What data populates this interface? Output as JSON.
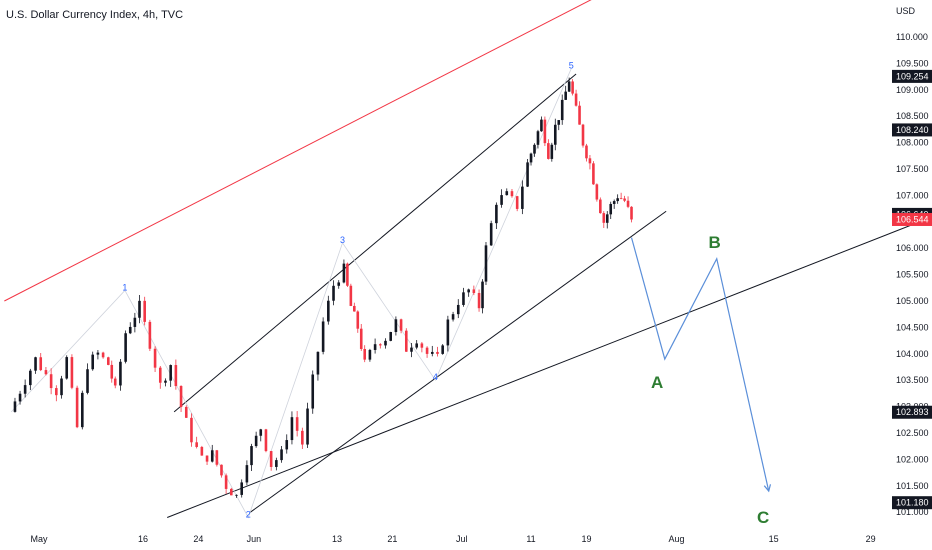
{
  "header": {
    "title": "U.S. Dollar Currency Index, 4h, TVC"
  },
  "chart_data": {
    "type": "candlestick",
    "currency": "USD",
    "y_ticks": [
      "110.000",
      "109.500",
      "109.000",
      "108.500",
      "108.000",
      "107.500",
      "107.000",
      "106.500",
      "106.000",
      "105.500",
      "105.000",
      "104.500",
      "104.000",
      "103.500",
      "103.000",
      "102.500",
      "102.000",
      "101.500",
      "101.000"
    ],
    "x_ticks": [
      {
        "label": "May",
        "day": 1
      },
      {
        "label": "16",
        "day": 16
      },
      {
        "label": "24",
        "day": 24
      },
      {
        "label": "Jun",
        "day": 32
      },
      {
        "label": "13",
        "day": 44
      },
      {
        "label": "21",
        "day": 52
      },
      {
        "label": "Jul",
        "day": 62
      },
      {
        "label": "11",
        "day": 72
      },
      {
        "label": "19",
        "day": 80
      },
      {
        "label": "Aug",
        "day": 93
      },
      {
        "label": "15",
        "day": 107
      },
      {
        "label": "29",
        "day": 121
      }
    ],
    "price_tags": [
      {
        "value": 109.254,
        "label": "109.254"
      },
      {
        "value": 108.24,
        "label": "108.240"
      },
      {
        "value": 106.64,
        "label": "106.640"
      },
      {
        "value": 106.544,
        "label": "106.544",
        "highlight": true
      },
      {
        "value": 102.893,
        "label": "102.893"
      },
      {
        "value": 101.18,
        "label": "101.180"
      }
    ],
    "price_path": [
      [
        -3.2,
        102.9
      ],
      [
        -1,
        103.5
      ],
      [
        0.5,
        103.9
      ],
      [
        2,
        103.6
      ],
      [
        3.5,
        103.3
      ],
      [
        5,
        103.9
      ],
      [
        6.5,
        102.6
      ],
      [
        8,
        103.8
      ],
      [
        9.5,
        104.0
      ],
      [
        11,
        103.8
      ],
      [
        12,
        103.3
      ],
      [
        13.5,
        104.4
      ],
      [
        15.5,
        104.9
      ],
      [
        17,
        104.2
      ],
      [
        18.5,
        103.4
      ],
      [
        20,
        103.8
      ],
      [
        21.5,
        103.0
      ],
      [
        23,
        102.4
      ],
      [
        24.5,
        102.0
      ],
      [
        26,
        102.1
      ],
      [
        28,
        101.5
      ],
      [
        29.5,
        101.3
      ],
      [
        31,
        102.0
      ],
      [
        33,
        102.6
      ],
      [
        34.5,
        101.9
      ],
      [
        36,
        102.1
      ],
      [
        37.5,
        102.8
      ],
      [
        39,
        102.3
      ],
      [
        40.5,
        103.5
      ],
      [
        42,
        104.6
      ],
      [
        43.5,
        105.3
      ],
      [
        45,
        105.6
      ],
      [
        46,
        104.9
      ],
      [
        47,
        104.5
      ],
      [
        48,
        103.8
      ],
      [
        49.5,
        104.2
      ],
      [
        51,
        104.3
      ],
      [
        52.5,
        104.6
      ],
      [
        54,
        104.1
      ],
      [
        55.5,
        104.3
      ],
      [
        57,
        104.0
      ],
      [
        58.5,
        103.9
      ],
      [
        60,
        104.6
      ],
      [
        61.5,
        105.0
      ],
      [
        63,
        105.2
      ],
      [
        64.5,
        104.9
      ],
      [
        65.5,
        106.0
      ],
      [
        67,
        106.9
      ],
      [
        68.5,
        107.0
      ],
      [
        70,
        106.8
      ],
      [
        71.5,
        107.6
      ],
      [
        72.5,
        108.0
      ],
      [
        73.5,
        108.4
      ],
      [
        74.5,
        107.8
      ],
      [
        75.5,
        108.3
      ],
      [
        76.5,
        108.7
      ],
      [
        77.5,
        109.2
      ],
      [
        78.5,
        108.6
      ],
      [
        79.5,
        108.0
      ],
      [
        80.5,
        107.6
      ],
      [
        81.5,
        107.0
      ],
      [
        82.5,
        106.5
      ],
      [
        83.5,
        106.8
      ],
      [
        84.5,
        107.0
      ],
      [
        85.5,
        106.9
      ],
      [
        86.5,
        106.544
      ]
    ],
    "wave_labels": [
      {
        "label": "1",
        "day": 13.4,
        "value": 105.2
      },
      {
        "label": "2",
        "day": 31.2,
        "value": 100.9
      },
      {
        "label": "3",
        "day": 44.8,
        "value": 106.1
      },
      {
        "label": "4",
        "day": 58.2,
        "value": 103.5
      },
      {
        "label": "5",
        "day": 77.8,
        "value": 109.4
      }
    ],
    "abc_projection": {
      "points": [
        {
          "day": 86.5,
          "value": 106.2
        },
        {
          "day": 91.3,
          "value": 103.9
        },
        {
          "day": 98.8,
          "value": 105.8
        },
        {
          "day": 106.3,
          "value": 101.4
        }
      ],
      "labels": [
        {
          "label": "A",
          "day": 90.2,
          "value": 103.35
        },
        {
          "label": "B",
          "day": 98.5,
          "value": 106.0
        },
        {
          "label": "C",
          "day": 105.5,
          "value": 100.8
        }
      ]
    },
    "trendlines": [
      {
        "name": "red-channel-line",
        "from": {
          "day": -4,
          "value": 105.0
        },
        "to": {
          "day": 88,
          "value": 111.2
        },
        "color": "#f23645"
      },
      {
        "name": "upper-channel-line",
        "from": {
          "day": 20.5,
          "value": 102.9
        },
        "to": {
          "day": 78.5,
          "value": 109.3
        },
        "color": "#131722"
      },
      {
        "name": "lower-channel-line",
        "from": {
          "day": 31.5,
          "value": 101.0
        },
        "to": {
          "day": 91.5,
          "value": 106.7
        },
        "color": "#131722"
      },
      {
        "name": "long-support-line",
        "from": {
          "day": 19.5,
          "value": 100.9
        },
        "to": {
          "day": 130,
          "value": 106.6
        },
        "color": "#131722"
      }
    ],
    "colors": {
      "up": "#131722",
      "down": "#f23645",
      "projection": "#5b8fd9",
      "tag": "#131722",
      "tag_highlight": "#f23645"
    }
  }
}
